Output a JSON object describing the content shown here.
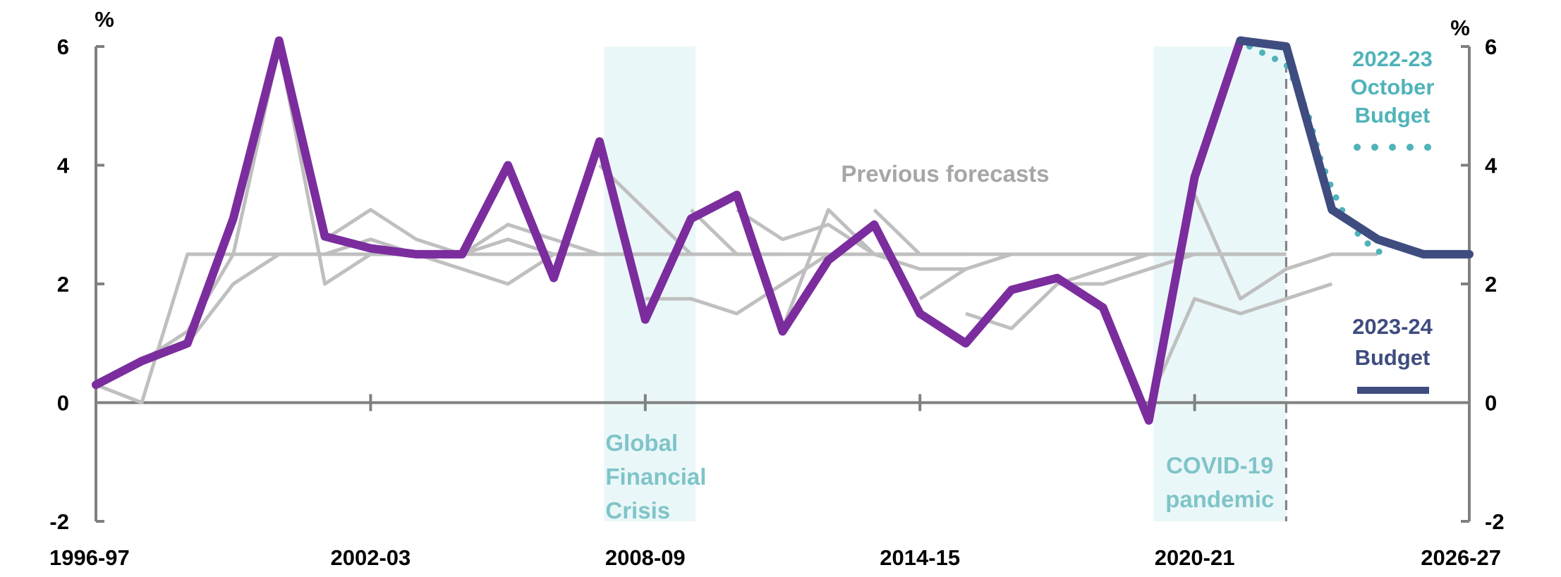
{
  "chart_data": {
    "type": "line",
    "title": "",
    "xlabel": "",
    "ylabel": "%",
    "ylabel_right": "%",
    "ylim": [
      -2,
      6
    ],
    "yticks": [
      -2,
      0,
      2,
      4,
      6
    ],
    "x_range": [
      1996,
      2026
    ],
    "x_tick_labels": [
      "1996-97",
      "2002-03",
      "2008-09",
      "2014-15",
      "2020-21",
      "2026-27"
    ],
    "x_tick_years": [
      1996,
      2002,
      2008,
      2014,
      2020,
      2026
    ],
    "shaded_periods": [
      {
        "name": "Global Financial Crisis",
        "label_lines": [
          "Global",
          "Financial",
          "Crisis"
        ],
        "x_start": 2007.1,
        "x_end": 2009.1,
        "color": "#eaf7f8",
        "label_color": "#7fc4c8"
      },
      {
        "name": "COVID-19 pandemic",
        "label_lines": [
          "COVID-19",
          "pandemic"
        ],
        "x_start": 2019.1,
        "x_end": 2022.0,
        "color": "#eaf7f8",
        "label_color": "#7fc4c8"
      }
    ],
    "forecast_divider_x": 2022.0,
    "annotation_previous_forecasts": "Previous forecasts",
    "series": [
      {
        "name": "Previous forecasts",
        "color": "#bfbfbf",
        "style": "solid",
        "role": "forecast",
        "points": [
          [
            1996,
            0.3
          ],
          [
            1997,
            0.0
          ],
          [
            1998,
            2.5
          ],
          [
            2021,
            2.5
          ]
        ]
      },
      {
        "name": "Previous forecasts",
        "color": "#bfbfbf",
        "style": "solid",
        "role": "forecast",
        "points": [
          [
            1997,
            0.7
          ],
          [
            1998,
            1.2
          ],
          [
            1999,
            2.5
          ],
          [
            2000,
            6.0
          ],
          [
            2001,
            2.0
          ],
          [
            2002,
            2.5
          ],
          [
            2003,
            2.5
          ],
          [
            2004,
            2.25
          ],
          [
            2005,
            2.0
          ],
          [
            2006,
            2.5
          ],
          [
            2007,
            2.5
          ]
        ]
      },
      {
        "name": "Previous forecasts",
        "color": "#bfbfbf",
        "style": "solid",
        "role": "forecast",
        "points": [
          [
            1998,
            1.0
          ],
          [
            1999,
            2.0
          ],
          [
            2000,
            2.5
          ],
          [
            2001,
            2.5
          ],
          [
            2002,
            2.75
          ],
          [
            2003,
            2.5
          ],
          [
            2004,
            2.5
          ]
        ]
      },
      {
        "name": "Previous forecasts",
        "color": "#bfbfbf",
        "style": "solid",
        "role": "forecast",
        "points": [
          [
            2001,
            2.75
          ],
          [
            2002,
            3.25
          ],
          [
            2003,
            2.75
          ],
          [
            2004,
            2.5
          ],
          [
            2005,
            2.75
          ],
          [
            2006,
            2.5
          ],
          [
            2007,
            2.5
          ]
        ]
      },
      {
        "name": "Previous forecasts",
        "color": "#bfbfbf",
        "style": "solid",
        "role": "forecast",
        "points": [
          [
            2004,
            2.5
          ],
          [
            2005,
            3.0
          ],
          [
            2006,
            2.75
          ],
          [
            2007,
            2.5
          ],
          [
            2009,
            2.5
          ]
        ]
      },
      {
        "name": "Previous forecasts",
        "color": "#bfbfbf",
        "style": "solid",
        "role": "forecast",
        "points": [
          [
            2007,
            4.0
          ],
          [
            2008,
            3.25
          ],
          [
            2009,
            2.5
          ]
        ]
      },
      {
        "name": "Previous forecasts",
        "color": "#bfbfbf",
        "style": "solid",
        "role": "forecast",
        "points": [
          [
            2008,
            1.75
          ],
          [
            2009,
            1.75
          ],
          [
            2010,
            1.5
          ],
          [
            2011,
            2.0
          ],
          [
            2012,
            2.5
          ]
        ]
      },
      {
        "name": "Previous forecasts",
        "color": "#bfbfbf",
        "style": "solid",
        "role": "forecast",
        "points": [
          [
            2009,
            3.25
          ],
          [
            2010,
            2.5
          ],
          [
            2011,
            2.5
          ]
        ]
      },
      {
        "name": "Previous forecasts",
        "color": "#bfbfbf",
        "style": "solid",
        "role": "forecast",
        "points": [
          [
            2010,
            3.25
          ],
          [
            2011,
            2.75
          ],
          [
            2012,
            3.0
          ],
          [
            2013,
            2.5
          ]
        ]
      },
      {
        "name": "Previous forecasts",
        "color": "#bfbfbf",
        "style": "solid",
        "role": "forecast",
        "points": [
          [
            2011,
            1.25
          ],
          [
            2012,
            3.25
          ],
          [
            2013,
            2.5
          ],
          [
            2014,
            2.25
          ],
          [
            2015,
            2.25
          ]
        ]
      },
      {
        "name": "Previous forecasts",
        "color": "#bfbfbf",
        "style": "solid",
        "role": "forecast",
        "points": [
          [
            2013,
            3.25
          ],
          [
            2014,
            2.5
          ],
          [
            2015,
            2.5
          ]
        ]
      },
      {
        "name": "Previous forecasts",
        "color": "#bfbfbf",
        "style": "solid",
        "role": "forecast",
        "points": [
          [
            2014,
            1.75
          ],
          [
            2015,
            2.25
          ],
          [
            2016,
            2.5
          ]
        ]
      },
      {
        "name": "Previous forecasts",
        "color": "#bfbfbf",
        "style": "solid",
        "role": "forecast",
        "points": [
          [
            2015,
            1.5
          ],
          [
            2016,
            1.25
          ],
          [
            2017,
            2.0
          ],
          [
            2018,
            2.0
          ],
          [
            2019,
            2.25
          ],
          [
            2020,
            2.5
          ]
        ]
      },
      {
        "name": "Previous forecasts",
        "color": "#bfbfbf",
        "style": "solid",
        "role": "forecast",
        "points": [
          [
            2017,
            2.0
          ],
          [
            2018,
            2.25
          ],
          [
            2019,
            2.5
          ]
        ]
      },
      {
        "name": "Previous forecasts",
        "color": "#bfbfbf",
        "style": "solid",
        "role": "forecast",
        "points": [
          [
            2019,
            2.25
          ],
          [
            2020,
            2.5
          ],
          [
            2021,
            2.5
          ]
        ]
      },
      {
        "name": "Previous forecasts",
        "color": "#bfbfbf",
        "style": "solid",
        "role": "forecast",
        "points": [
          [
            2019,
            0.0
          ],
          [
            2020,
            1.75
          ],
          [
            2021,
            1.5
          ],
          [
            2022,
            1.75
          ],
          [
            2023,
            2.0
          ]
        ]
      },
      {
        "name": "Previous forecasts",
        "color": "#bfbfbf",
        "style": "solid",
        "role": "forecast",
        "points": [
          [
            2020,
            3.5
          ],
          [
            2021,
            1.75
          ],
          [
            2022,
            2.25
          ],
          [
            2023,
            2.5
          ],
          [
            2024,
            2.5
          ]
        ]
      },
      {
        "name": "Previous forecasts",
        "color": "#bfbfbf",
        "style": "solid",
        "role": "forecast",
        "points": [
          [
            2020,
            2.5
          ],
          [
            2022,
            2.5
          ]
        ]
      },
      {
        "name": "Actual",
        "color": "#7b2d9e",
        "style": "solid",
        "role": "actual",
        "points": [
          [
            1996,
            0.3
          ],
          [
            1997,
            0.7
          ],
          [
            1998,
            1.0
          ],
          [
            1999,
            3.1
          ],
          [
            2000,
            6.1
          ],
          [
            2001,
            2.8
          ],
          [
            2002,
            2.6
          ],
          [
            2003,
            2.5
          ],
          [
            2004,
            2.5
          ],
          [
            2005,
            4.0
          ],
          [
            2006,
            2.1
          ],
          [
            2007,
            4.4
          ],
          [
            2008,
            1.4
          ],
          [
            2009,
            3.1
          ],
          [
            2010,
            3.5
          ],
          [
            2011,
            1.2
          ],
          [
            2012,
            2.4
          ],
          [
            2013,
            3.0
          ],
          [
            2014,
            1.5
          ],
          [
            2015,
            1.0
          ],
          [
            2016,
            1.9
          ],
          [
            2017,
            2.1
          ],
          [
            2018,
            1.6
          ],
          [
            2019,
            -0.3
          ],
          [
            2020,
            3.8
          ],
          [
            2021,
            6.1
          ]
        ]
      },
      {
        "name": "2022-23 October Budget",
        "color": "#4fb3b9",
        "style": "dotted",
        "role": "budget",
        "points": [
          [
            2021.2,
            6.0
          ],
          [
            2021.6,
            5.85
          ],
          [
            2022.0,
            5.7
          ],
          [
            2022.25,
            5.3
          ],
          [
            2022.5,
            4.8
          ],
          [
            2022.75,
            4.1
          ],
          [
            2023.0,
            3.6
          ],
          [
            2023.25,
            3.2
          ],
          [
            2023.5,
            2.9
          ],
          [
            2023.75,
            2.7
          ],
          [
            2024.0,
            2.55
          ],
          [
            2024.25,
            2.5
          ]
        ]
      },
      {
        "name": "2023-24 Budget",
        "color": "#3f4c7f",
        "style": "solid",
        "role": "budget",
        "points": [
          [
            2021,
            6.1
          ],
          [
            2022,
            6.0
          ],
          [
            2023,
            3.25
          ],
          [
            2024,
            2.75
          ],
          [
            2025,
            2.5
          ],
          [
            2026,
            2.5
          ]
        ]
      }
    ],
    "legend": [
      {
        "lines": [
          "2022-23",
          "October",
          "Budget"
        ],
        "color": "#4fb3b9",
        "style": "dotted"
      },
      {
        "lines": [
          "2023-24",
          "Budget"
        ],
        "color": "#3f4c7f",
        "style": "solid"
      }
    ]
  }
}
